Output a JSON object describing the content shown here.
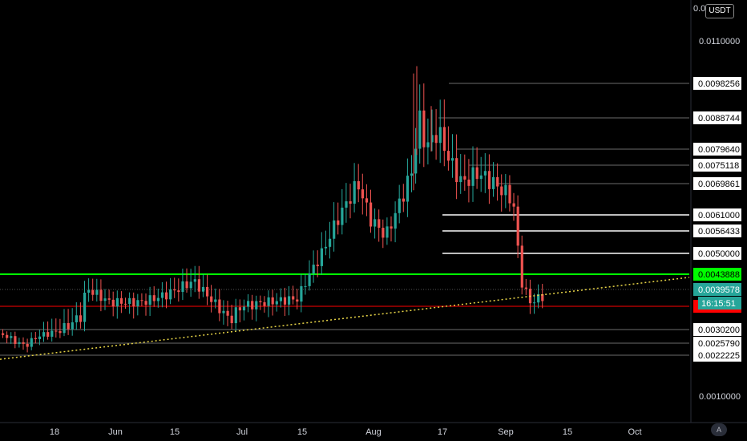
{
  "currency": "USDT",
  "auto_scale": "A",
  "colors": {
    "background": "#000000",
    "up": "#26a69a",
    "down": "#ef5350",
    "support_line": "#00ff00",
    "resistance_line": "#ff0000",
    "trendline": "#e8d547",
    "level_line": "#9a9a9a"
  },
  "chart_data": {
    "type": "candlestick",
    "y_axis_ticks": [
      {
        "label": "0.0110000",
        "value": 0.011
      },
      {
        "label": "0.0010000",
        "value": 0.001
      }
    ],
    "x_axis_ticks": [
      "18",
      "Jun",
      "15",
      "Jul",
      "15",
      "Aug",
      "17",
      "Sep",
      "15",
      "Oct"
    ],
    "price_levels": [
      {
        "label": "0.0098256",
        "value": 0.0098256,
        "style": "gray"
      },
      {
        "label": "0.0088744",
        "value": 0.0088744,
        "style": "gray"
      },
      {
        "label": "0.0079640",
        "value": 0.007964,
        "style": "gray"
      },
      {
        "label": "0.0075118",
        "value": 0.0075118,
        "style": "gray"
      },
      {
        "label": "0.0069861",
        "value": 0.0069861,
        "style": "gray"
      },
      {
        "label": "0.0061000",
        "value": 0.0061,
        "style": "white"
      },
      {
        "label": "0.0056433",
        "value": 0.0056433,
        "style": "white"
      },
      {
        "label": "0.0050000",
        "value": 0.005,
        "style": "white"
      },
      {
        "label": "0.0043888",
        "value": 0.0043888,
        "style": "green"
      },
      {
        "label": "0.0039578",
        "value": 0.0039578,
        "style": "teal"
      },
      {
        "label": "0.0034836",
        "value": 0.0034836,
        "style": "red"
      },
      {
        "label": "0.0030200",
        "value": 0.00302,
        "style": "gray"
      },
      {
        "label": "0.0025790",
        "value": 0.002579,
        "style": "gray"
      },
      {
        "label": "0.0022225",
        "value": 0.0022225,
        "style": "gray"
      }
    ],
    "countdown_label": "16:15:51",
    "top_axis_label": "0.0",
    "trendline": {
      "start": 0.0021,
      "end": 0.0043
    },
    "candles": []
  }
}
